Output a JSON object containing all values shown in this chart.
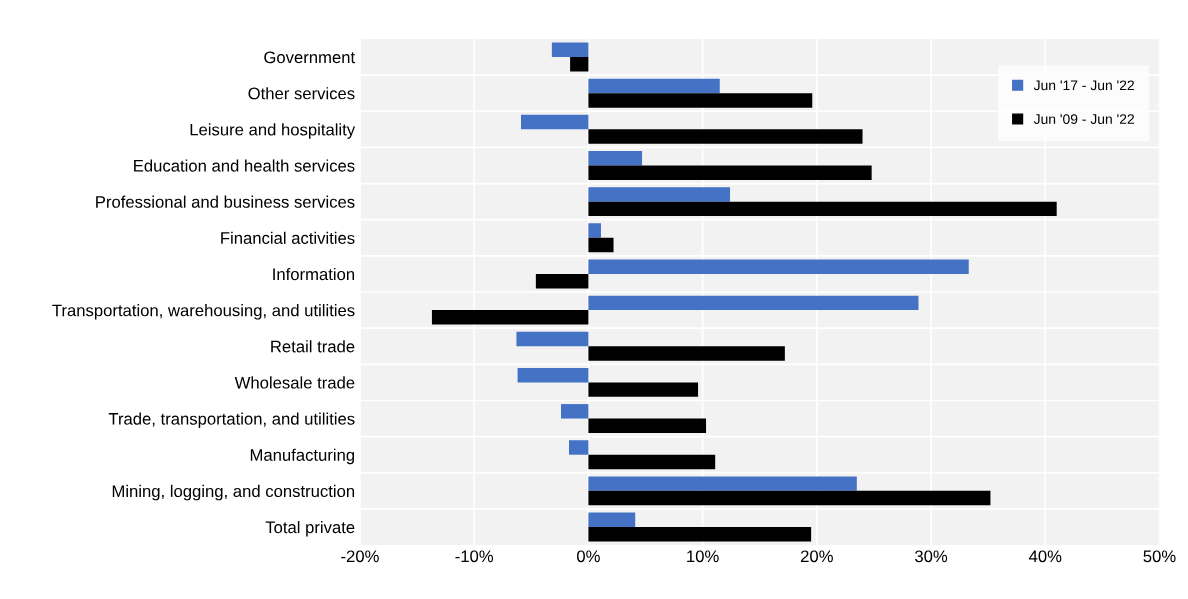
{
  "chart_data": {
    "type": "bar",
    "orientation": "horizontal",
    "categories": [
      "Government",
      "Other services",
      "Leisure and hospitality",
      "Education and health services",
      "Professional and business services",
      "Financial activities",
      "Information",
      "Transportation, warehousing, and utilities",
      "Retail trade",
      "Wholesale trade",
      "Trade, transportation, and utilities",
      "Manufacturing",
      "Mining, logging, and construction",
      "Total private"
    ],
    "series": [
      {
        "name": "Jun '17 - Jun '22",
        "color": "#4472c4",
        "values": [
          -3.2,
          11.5,
          -5.9,
          4.7,
          12.4,
          1.1,
          33.3,
          28.9,
          -6.3,
          -6.2,
          -2.4,
          -1.7,
          23.5,
          4.1
        ]
      },
      {
        "name": "Jun '09 - Jun '22",
        "color": "#000000",
        "values": [
          -1.6,
          19.6,
          24.0,
          24.8,
          41.0,
          2.2,
          -4.6,
          -13.7,
          17.2,
          9.6,
          10.3,
          11.1,
          35.2,
          19.5
        ]
      }
    ],
    "xlim": [
      -20,
      50
    ],
    "xticks": [
      {
        "value": -20,
        "label": "-20%"
      },
      {
        "value": -10,
        "label": "-10%"
      },
      {
        "value": 0,
        "label": "0%"
      },
      {
        "value": 10,
        "label": "10%"
      },
      {
        "value": 20,
        "label": "20%"
      },
      {
        "value": 30,
        "label": "30%"
      },
      {
        "value": 40,
        "label": "40%"
      },
      {
        "value": 50,
        "label": "50%"
      }
    ],
    "grid": true,
    "legend": "top right"
  }
}
